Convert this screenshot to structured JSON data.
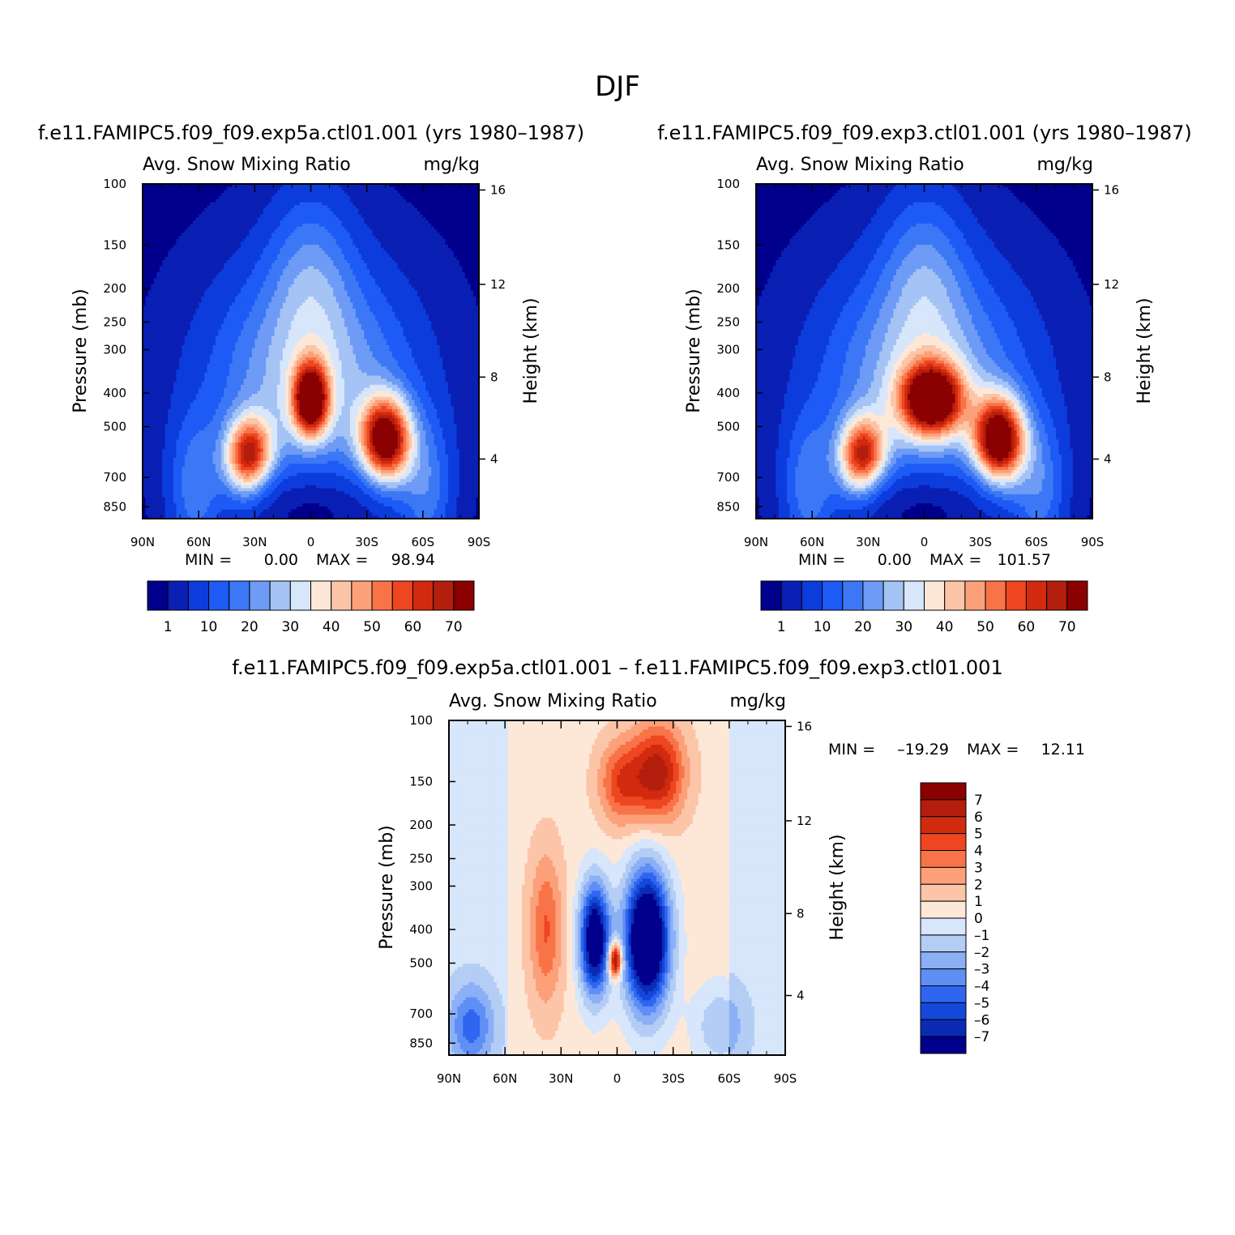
{
  "figure_title": "DJF",
  "chart_data": [
    {
      "id": "panel_a",
      "type": "heatmap",
      "title": "f.e11.FAMIPC5.f09_f09.exp5a.ctl01.001 (yrs 1980–1987)",
      "subtitle_left": "Avg. Snow Mixing Ratio",
      "subtitle_right": "mg/kg",
      "ylabel": "Pressure (mb)",
      "ylabel_right": "Height (km)",
      "x_ticks": [
        "90N",
        "60N",
        "30N",
        "0",
        "30S",
        "60S",
        "90S"
      ],
      "y_ticks": [
        "100",
        "150",
        "200",
        "250",
        "300",
        "400",
        "500",
        "700",
        "850"
      ],
      "y_ticks_right": [
        "16",
        "12",
        "8",
        "4"
      ],
      "min_label": "MIN =",
      "min_value": "0.00",
      "max_label": "MAX =",
      "max_value": "98.94",
      "colorbar_labels": [
        "1",
        "10",
        "20",
        "30",
        "40",
        "50",
        "60",
        "70"
      ],
      "features": [
        {
          "name": "upper_dome",
          "lat": 0,
          "p": 330,
          "value": 18
        },
        {
          "name": "nh_max",
          "lat": -33,
          "p": 600,
          "value": 80
        },
        {
          "name": "eq_max",
          "lat": 0,
          "p": 420,
          "value": 75
        },
        {
          "name": "sh_max",
          "lat": 40,
          "p": 540,
          "value": 90
        },
        {
          "name": "low_eq_min",
          "lat": 0,
          "p": 850,
          "value": 0
        }
      ]
    },
    {
      "id": "panel_b",
      "type": "heatmap",
      "title": "f.e11.FAMIPC5.f09_f09.exp3.ctl01.001 (yrs 1980–1987)",
      "subtitle_left": "Avg. Snow Mixing Ratio",
      "subtitle_right": "mg/kg",
      "ylabel": "Pressure (mb)",
      "ylabel_right": "Height (km)",
      "x_ticks": [
        "90N",
        "60N",
        "30N",
        "0",
        "30S",
        "60S",
        "90S"
      ],
      "y_ticks": [
        "100",
        "150",
        "200",
        "250",
        "300",
        "400",
        "500",
        "700",
        "850"
      ],
      "y_ticks_right": [
        "16",
        "12",
        "8",
        "4"
      ],
      "min_label": "MIN =",
      "min_value": "0.00",
      "max_label": "MAX =",
      "max_value": "101.57",
      "colorbar_labels": [
        "1",
        "10",
        "20",
        "30",
        "40",
        "50",
        "60",
        "70"
      ],
      "features": [
        {
          "name": "upper_dome",
          "lat": 0,
          "p": 330,
          "value": 18
        },
        {
          "name": "nh_max",
          "lat": -33,
          "p": 600,
          "value": 78
        },
        {
          "name": "eq_max",
          "lat": 5,
          "p": 420,
          "value": 80
        },
        {
          "name": "sh_max",
          "lat": 38,
          "p": 560,
          "value": 95
        },
        {
          "name": "low_eq_min",
          "lat": 0,
          "p": 850,
          "value": 0
        }
      ]
    },
    {
      "id": "panel_diff",
      "type": "heatmap",
      "title": "f.e11.FAMIPC5.f09_f09.exp5a.ctl01.001 – f.e11.FAMIPC5.f09_f09.exp3.ctl01.001",
      "subtitle_left": "Avg. Snow Mixing Ratio",
      "subtitle_right": "mg/kg",
      "ylabel": "Pressure (mb)",
      "ylabel_right": "Height (km)",
      "x_ticks": [
        "90N",
        "60N",
        "30N",
        "0",
        "30S",
        "60S",
        "90S"
      ],
      "y_ticks": [
        "100",
        "150",
        "200",
        "250",
        "300",
        "400",
        "500",
        "700",
        "850"
      ],
      "y_ticks_right": [
        "16",
        "12",
        "8",
        "4"
      ],
      "min_label": "MIN =",
      "min_value": "–19.29",
      "max_label": "MAX =",
      "max_value": "12.11",
      "colorbar_labels": [
        "7",
        "6",
        "5",
        "4",
        "3",
        "2",
        "1",
        "0",
        "–1",
        "–2",
        "–3",
        "–4",
        "–5",
        "–6",
        "–7"
      ],
      "features": [
        {
          "name": "upper_positive",
          "lat": 22,
          "p": 150,
          "value": 6
        },
        {
          "name": "nh_positive",
          "lat": -40,
          "p": 420,
          "value": 4
        },
        {
          "name": "eq_negative",
          "lat": -10,
          "p": 420,
          "value": -8
        },
        {
          "name": "sh_negative",
          "lat": 15,
          "p": 450,
          "value": -8
        },
        {
          "name": "eq_positive_core",
          "lat": 0,
          "p": 510,
          "value": 6
        },
        {
          "name": "low_nh_negative",
          "lat": -75,
          "p": 800,
          "value": -4
        }
      ]
    }
  ],
  "colors": {
    "seq": [
      "#00008c",
      "#0a1fb4",
      "#0d3cdc",
      "#1e5af5",
      "#3c78f5",
      "#6e9bf5",
      "#a5c3f5",
      "#d7e6fa",
      "#fde8d8",
      "#fcc5a8",
      "#fca07a",
      "#f87448",
      "#ee4621",
      "#d22a0f",
      "#b31e0d",
      "#8b0000"
    ],
    "div": [
      "#8b0000",
      "#b31e0d",
      "#d22a0f",
      "#ee4621",
      "#f87448",
      "#fca07a",
      "#fcc5a8",
      "#fde8d8",
      "#d7e6fa",
      "#b4cdf5",
      "#8cb0f5",
      "#5f8ff5",
      "#2f66f0",
      "#1448d8",
      "#0a2cb4",
      "#00008c"
    ]
  }
}
